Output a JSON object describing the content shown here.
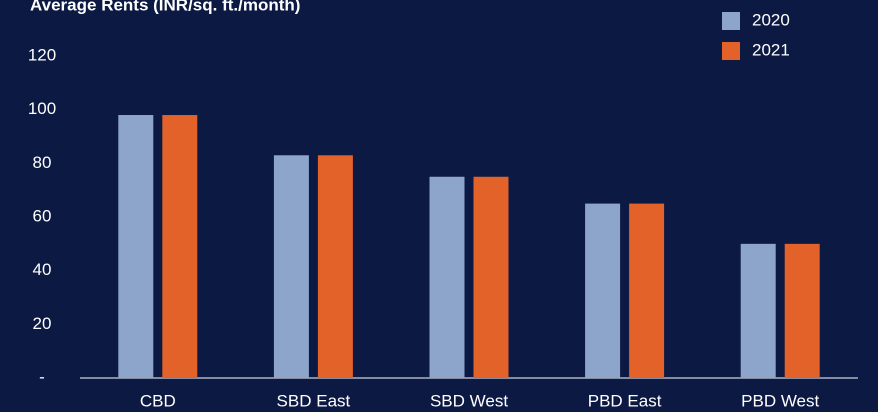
{
  "chart_data": {
    "type": "bar",
    "title": "Average Rents (INR/sq. ft./month)",
    "categories": [
      "CBD",
      "SBD East",
      "SBD West",
      "PBD East",
      "PBD West"
    ],
    "series": [
      {
        "name": "2020",
        "color": "#8ea5cb",
        "values": [
          98,
          83,
          75,
          65,
          50
        ]
      },
      {
        "name": "2021",
        "color": "#e2622a",
        "values": [
          98,
          83,
          75,
          65,
          50
        ]
      }
    ],
    "ylim": [
      0,
      120
    ],
    "yticks": [
      {
        "value": 0,
        "label": "-"
      },
      20,
      40,
      60,
      80,
      100,
      120
    ],
    "grid": false,
    "legend": "top-right"
  }
}
